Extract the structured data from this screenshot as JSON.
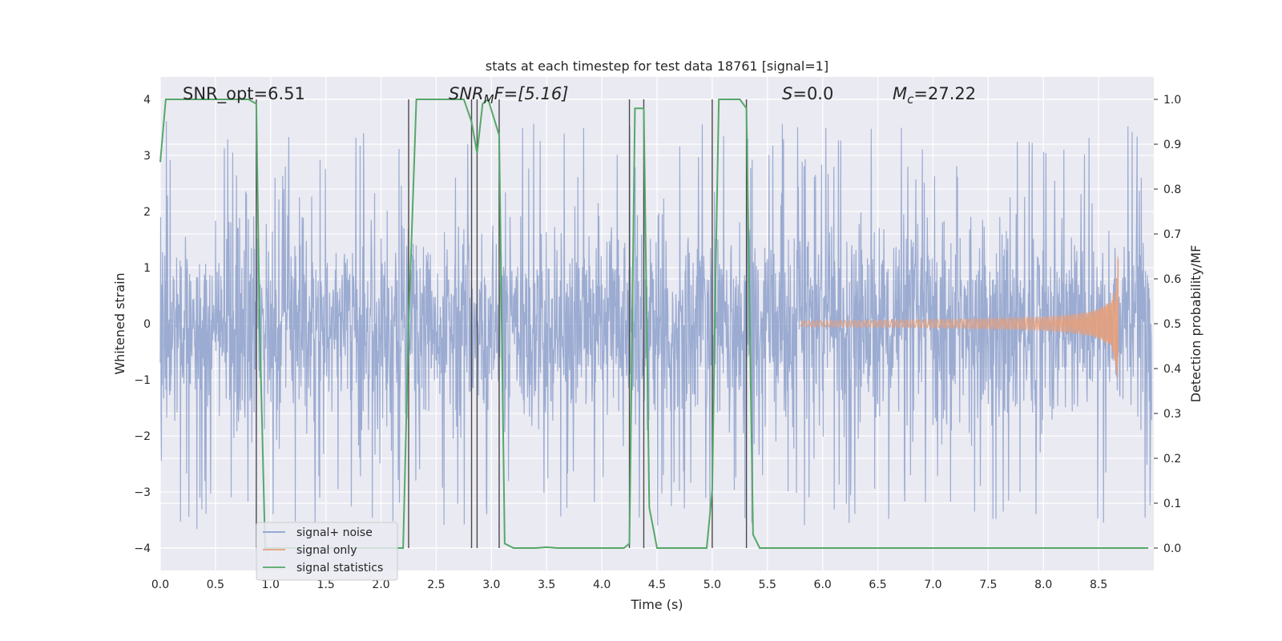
{
  "chart_data": {
    "type": "line",
    "title": "stats at each timestep for test data 18761 [signal=1]",
    "xlabel": "Time (s)",
    "ylabel_left": "Whitened strain",
    "ylabel_right": "Detection probability/MF",
    "xlim": [
      0.0,
      9.0
    ],
    "ylim_left": [
      -4.4,
      4.4
    ],
    "ylim_right": [
      -0.05,
      1.05
    ],
    "grid": true,
    "legend_position": "lower-left",
    "x_ticks": [
      "0.0",
      "0.5",
      "1.0",
      "1.5",
      "2.0",
      "2.5",
      "3.0",
      "3.5",
      "4.0",
      "4.5",
      "5.0",
      "5.5",
      "6.0",
      "6.5",
      "7.0",
      "7.5",
      "8.0",
      "8.5"
    ],
    "y_ticks_left": [
      "−4",
      "−3",
      "−2",
      "−1",
      "0",
      "1",
      "2",
      "3",
      "4"
    ],
    "y_ticks_right": [
      "0.0",
      "0.1",
      "0.2",
      "0.3",
      "0.4",
      "0.5",
      "0.6",
      "0.7",
      "0.8",
      "0.9",
      "1.0"
    ],
    "annotations": {
      "snr_opt": "SNR_opt=6.51",
      "snr_mf_main": "SNR",
      "snr_mf_sub": "M",
      "snr_mf_rest": "F=[5.16]",
      "s_main": "S",
      "s_rest": "=0.0",
      "mc_main": "M",
      "mc_sub": "c",
      "mc_rest": "=27.22"
    },
    "vertical_lines_x": [
      0.87,
      2.25,
      2.82,
      2.87,
      3.07,
      4.25,
      4.38,
      5.0,
      5.31
    ],
    "series": [
      {
        "name": "signal+ noise",
        "color": "#8da0cb",
        "description_type": "noise",
        "std": 1.0,
        "spike_level": 2.6
      },
      {
        "name": "signal only",
        "color": "#e6a07c",
        "chirp_start": 5.8,
        "chirp_end": 8.68,
        "peak_amplitude": 1.6
      },
      {
        "name": "signal statistics",
        "color": "#55a868",
        "x": [
          0.0,
          0.05,
          0.1,
          0.8,
          0.87,
          0.9,
          0.95,
          1.0,
          2.1,
          2.2,
          2.25,
          2.32,
          2.4,
          2.75,
          2.82,
          2.87,
          2.92,
          2.97,
          3.07,
          3.12,
          3.2,
          3.4,
          3.5,
          3.6,
          4.2,
          4.25,
          4.3,
          4.38,
          4.43,
          4.5,
          4.95,
          5.0,
          5.03,
          5.06,
          5.1,
          5.25,
          5.31,
          5.37,
          5.43,
          5.5,
          8.95
        ],
        "y": [
          0.86,
          1.0,
          1.0,
          1.0,
          0.99,
          0.5,
          0.0,
          0.0,
          0.0,
          0.0,
          0.5,
          1.0,
          1.0,
          1.0,
          0.95,
          0.88,
          0.99,
          1.0,
          0.92,
          0.01,
          0.0,
          0.0,
          0.002,
          0.0,
          0.0,
          0.01,
          0.98,
          0.98,
          0.09,
          0.0,
          0.0,
          0.13,
          0.6,
          1.0,
          1.0,
          1.0,
          0.98,
          0.03,
          0.0,
          0.0,
          0.0
        ]
      }
    ]
  }
}
